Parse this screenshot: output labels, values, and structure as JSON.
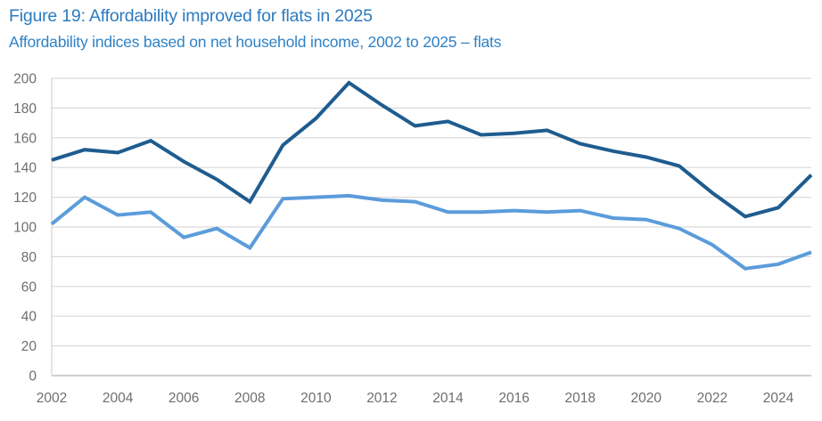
{
  "header": {
    "title": "Figure 19: Affordability improved for flats in 2025",
    "subtitle": "Affordability indices based on net household income, 2002 to 2025 – flats"
  },
  "chart_data": {
    "type": "line",
    "x": [
      2002,
      2003,
      2004,
      2005,
      2006,
      2007,
      2008,
      2009,
      2010,
      2011,
      2012,
      2013,
      2014,
      2015,
      2016,
      2017,
      2018,
      2019,
      2020,
      2021,
      2022,
      2023,
      2024,
      2025
    ],
    "series": [
      {
        "name": "dark-blue-line",
        "color": "#1F5C8F",
        "values": [
          145,
          152,
          150,
          158,
          144,
          132,
          117,
          155,
          173,
          197,
          182,
          168,
          171,
          162,
          163,
          165,
          156,
          151,
          147,
          141,
          123,
          107,
          113,
          135
        ]
      },
      {
        "name": "light-blue-line",
        "color": "#5B9CDB",
        "values": [
          102,
          120,
          108,
          110,
          93,
          99,
          86,
          119,
          120,
          121,
          118,
          117,
          110,
          110,
          111,
          110,
          111,
          106,
          105,
          99,
          88,
          72,
          75,
          83
        ]
      }
    ],
    "title": "Figure 19: Affordability improved for flats in 2025",
    "subtitle": "Affordability indices based on net household income, 2002 to 2025 – flats",
    "xlabel": "",
    "ylabel": "",
    "ylim": [
      0,
      200
    ],
    "yticks": [
      0,
      20,
      40,
      60,
      80,
      100,
      120,
      140,
      160,
      180,
      200
    ],
    "xticks": [
      2002,
      2004,
      2006,
      2008,
      2010,
      2012,
      2014,
      2016,
      2018,
      2020,
      2022,
      2024
    ],
    "grid": "horizontal",
    "legend": "none"
  },
  "style": {
    "grid_color": "#D9D9D9",
    "axis_line_color": "#BFBFBF",
    "tick_label_color": "#6E6E6E",
    "line_width": 4
  }
}
